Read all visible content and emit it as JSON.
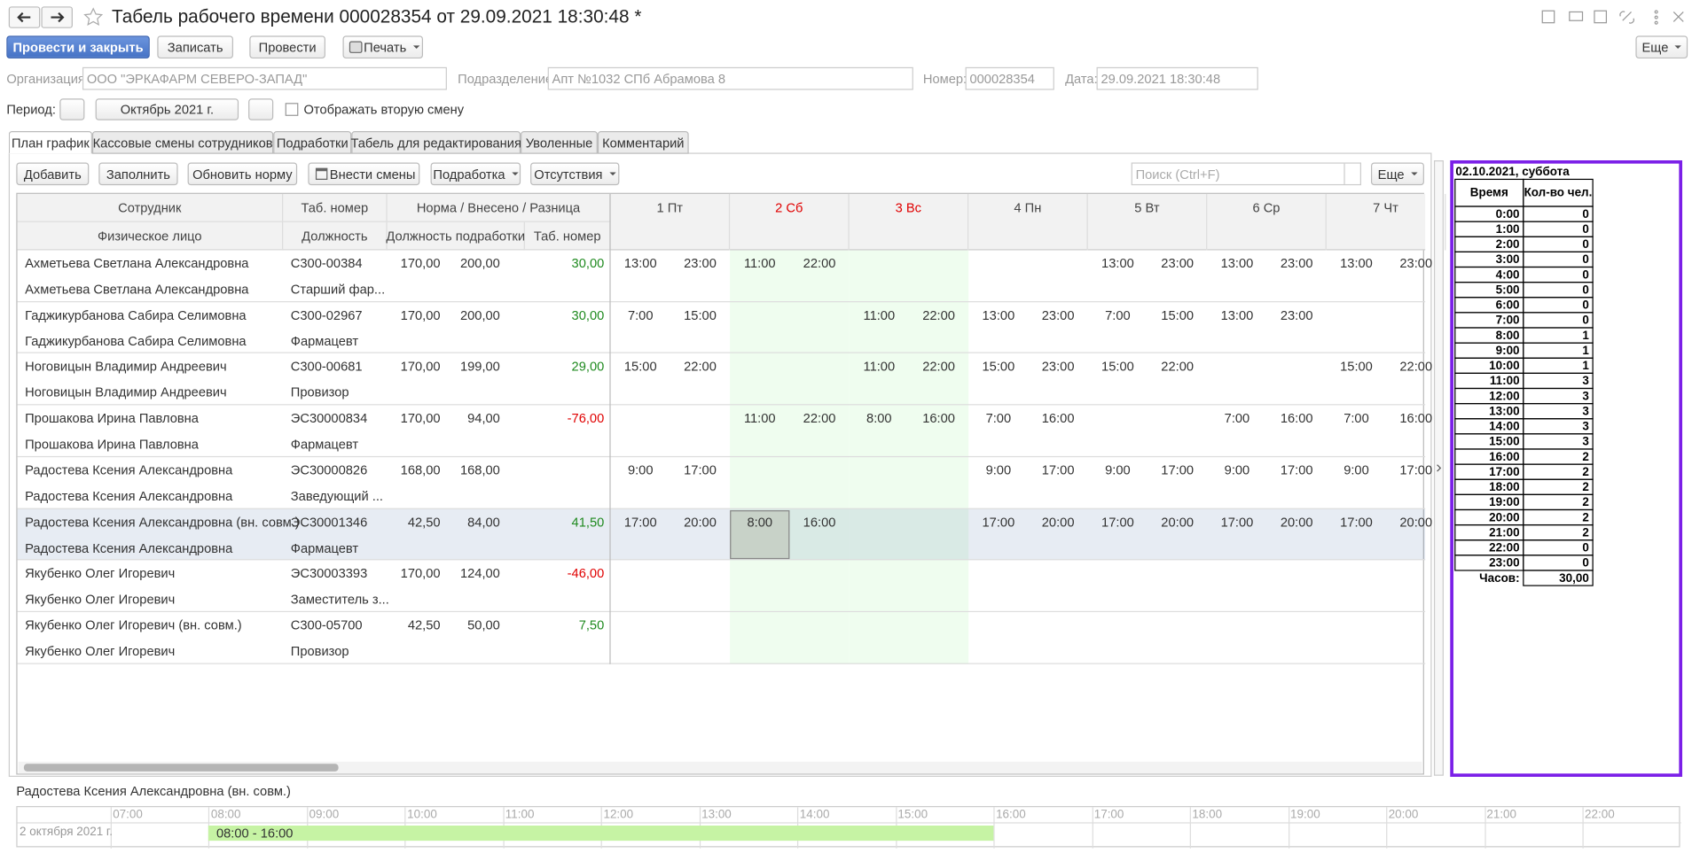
{
  "header": {
    "title": "Табель рабочего времени 000028354 от 29.09.2021 18:30:48 *",
    "buttons": [
      "Провести и закрыть",
      "Записать",
      "Провести",
      "Печать"
    ],
    "more": "Еще"
  },
  "fields": {
    "organization": {
      "label": "Организация:",
      "value": "ООО \"ЭРКАФАРМ СЕВЕРО-ЗАПАД\""
    },
    "department": {
      "label": "Подразделение:",
      "value": "Апт №1032 СПб Абрамова 8"
    },
    "number": {
      "label": "Номер:",
      "value": "000028354"
    },
    "date": {
      "label": "Дата:",
      "value": "29.09.2021 18:30:48"
    }
  },
  "period": {
    "label": "Период:",
    "value": "Октябрь 2021 г.",
    "checkbox": "Отображать вторую смену"
  },
  "tabs": [
    "План график",
    "Кассовые смены сотрудников",
    "Подработки",
    "Табель для редактирования",
    "Уволенные",
    "Комментарий"
  ],
  "table_toolbar": {
    "buttons": [
      "Добавить",
      "Заполнить",
      "Обновить норму",
      "Внести смены",
      "Подработка",
      "Отсутствия"
    ],
    "search": "Поиск (Ctrl+F)",
    "more": "Еще"
  },
  "table": {
    "headers": {
      "employee": "Сотрудник",
      "tab": "Таб. номер",
      "norm": "Норма / Внесено / Разница",
      "person": "Физическое лицо",
      "position": "Должность",
      "extra_position": "Должность подработки",
      "extra_tab": "Таб. номер"
    },
    "days": [
      {
        "label": "1 Пт",
        "weekend": false
      },
      {
        "label": "2 Сб",
        "weekend": true
      },
      {
        "label": "3 Вс",
        "weekend": true
      },
      {
        "label": "4 Пн",
        "weekend": false
      },
      {
        "label": "5 Вт",
        "weekend": false
      },
      {
        "label": "6 Ср",
        "weekend": false
      },
      {
        "label": "7 Чт",
        "weekend": false
      }
    ],
    "selected_row": 5,
    "rows": [
      {
        "name": "Ахметьева Светлана Александровна",
        "tab": "С300-00384",
        "norm": "170,00",
        "entered": "200,00",
        "diff": "30,00",
        "person": "Ахметьева Светлана Александровна",
        "position": "Старший фар...",
        "shifts": [
          [
            "13:00",
            "23:00"
          ],
          [
            "11:00",
            "22:00"
          ],
          null,
          null,
          [
            "13:00",
            "23:00"
          ],
          [
            "13:00",
            "23:00"
          ],
          [
            "13:00",
            "23:00"
          ]
        ]
      },
      {
        "name": "Гаджикурбанова Сабира Селимовна",
        "tab": "С300-02967",
        "norm": "170,00",
        "entered": "200,00",
        "diff": "30,00",
        "person": "Гаджикурбанова Сабира Селимовна",
        "position": "Фармацевт",
        "shifts": [
          [
            "7:00",
            "15:00"
          ],
          null,
          [
            "11:00",
            "22:00"
          ],
          [
            "13:00",
            "23:00"
          ],
          [
            "7:00",
            "15:00"
          ],
          [
            "13:00",
            "23:00"
          ],
          null
        ]
      },
      {
        "name": "Ноговицын Владимир Андреевич",
        "tab": "С300-00681",
        "norm": "170,00",
        "entered": "199,00",
        "diff": "29,00",
        "person": "Ноговицын Владимир Андреевич",
        "position": "Провизор",
        "shifts": [
          [
            "15:00",
            "22:00"
          ],
          null,
          [
            "11:00",
            "22:00"
          ],
          [
            "15:00",
            "23:00"
          ],
          [
            "15:00",
            "22:00"
          ],
          null,
          [
            "15:00",
            "22:00"
          ]
        ]
      },
      {
        "name": "Прошакова Ирина Павловна",
        "tab": "ЭС30000834",
        "norm": "170,00",
        "entered": "94,00",
        "diff": "-76,00",
        "person": "Прошакова Ирина Павловна",
        "position": "Фармацевт",
        "shifts": [
          null,
          [
            "11:00",
            "22:00"
          ],
          [
            "8:00",
            "16:00"
          ],
          [
            "7:00",
            "16:00"
          ],
          null,
          [
            "7:00",
            "16:00"
          ],
          [
            "7:00",
            "16:00"
          ]
        ]
      },
      {
        "name": "Радостева Ксения Александровна",
        "tab": "ЭС30000826",
        "norm": "168,00",
        "entered": "168,00",
        "diff": null,
        "person": "Радостева Ксения Александровна",
        "position": "Заведующий ...",
        "shifts": [
          [
            "9:00",
            "17:00"
          ],
          null,
          null,
          [
            "9:00",
            "17:00"
          ],
          [
            "9:00",
            "17:00"
          ],
          [
            "9:00",
            "17:00"
          ],
          [
            "9:00",
            "17:00"
          ]
        ]
      },
      {
        "name": "Радостева Ксения Александровна (вн. совм.)",
        "tab": "ЭС30001346",
        "norm": "42,50",
        "entered": "84,00",
        "diff": "41,50",
        "person": "Радостева Ксения Александровна",
        "position": "Фармацевт",
        "shifts": [
          [
            "17:00",
            "20:00"
          ],
          [
            "8:00",
            "16:00"
          ],
          null,
          [
            "17:00",
            "20:00"
          ],
          [
            "17:00",
            "20:00"
          ],
          [
            "17:00",
            "20:00"
          ],
          [
            "17:00",
            "20:00"
          ]
        ]
      },
      {
        "name": "Якубенко Олег Игоревич",
        "tab": "ЭС30003393",
        "norm": "170,00",
        "entered": "124,00",
        "diff": "-46,00",
        "person": "Якубенко Олег Игоревич",
        "position": "Заместитель з...",
        "shifts": [
          null,
          null,
          null,
          null,
          null,
          null,
          null
        ]
      },
      {
        "name": "Якубенко Олег Игоревич (вн. совм.)",
        "tab": "С300-05700",
        "norm": "42,50",
        "entered": "50,00",
        "diff": "7,50",
        "person": "Якубенко Олег Игоревич",
        "position": "Провизор",
        "shifts": [
          null,
          null,
          null,
          null,
          null,
          null,
          null
        ]
      }
    ]
  },
  "details": {
    "employee": "Радостева Ксения Александровна (вн. совм.)",
    "date": "2 октября 2021 г.",
    "hours": [
      "07:00",
      "08:00",
      "09:00",
      "10:00",
      "11:00",
      "12:00",
      "13:00",
      "14:00",
      "15:00",
      "16:00",
      "17:00",
      "18:00",
      "19:00",
      "20:00",
      "21:00",
      "22:00"
    ],
    "bar": "08:00 - 16:00"
  },
  "summary": {
    "title": "02.10.2021, суббота",
    "col_time": "Время",
    "col_count": "Кол-во чел.",
    "rows": [
      {
        "time": "0:00",
        "count": 0
      },
      {
        "time": "1:00",
        "count": 0
      },
      {
        "time": "2:00",
        "count": 0
      },
      {
        "time": "3:00",
        "count": 0
      },
      {
        "time": "4:00",
        "count": 0
      },
      {
        "time": "5:00",
        "count": 0
      },
      {
        "time": "6:00",
        "count": 0
      },
      {
        "time": "7:00",
        "count": 0
      },
      {
        "time": "8:00",
        "count": 1
      },
      {
        "time": "9:00",
        "count": 1
      },
      {
        "time": "10:00",
        "count": 1
      },
      {
        "time": "11:00",
        "count": 3
      },
      {
        "time": "12:00",
        "count": 3
      },
      {
        "time": "13:00",
        "count": 3
      },
      {
        "time": "14:00",
        "count": 3
      },
      {
        "time": "15:00",
        "count": 3
      },
      {
        "time": "16:00",
        "count": 2
      },
      {
        "time": "17:00",
        "count": 2
      },
      {
        "time": "18:00",
        "count": 2
      },
      {
        "time": "19:00",
        "count": 2
      },
      {
        "time": "20:00",
        "count": 2
      },
      {
        "time": "21:00",
        "count": 2
      },
      {
        "time": "22:00",
        "count": 0
      },
      {
        "time": "23:00",
        "count": 0
      }
    ],
    "total_label": "Часов:",
    "total": "30,00"
  }
}
